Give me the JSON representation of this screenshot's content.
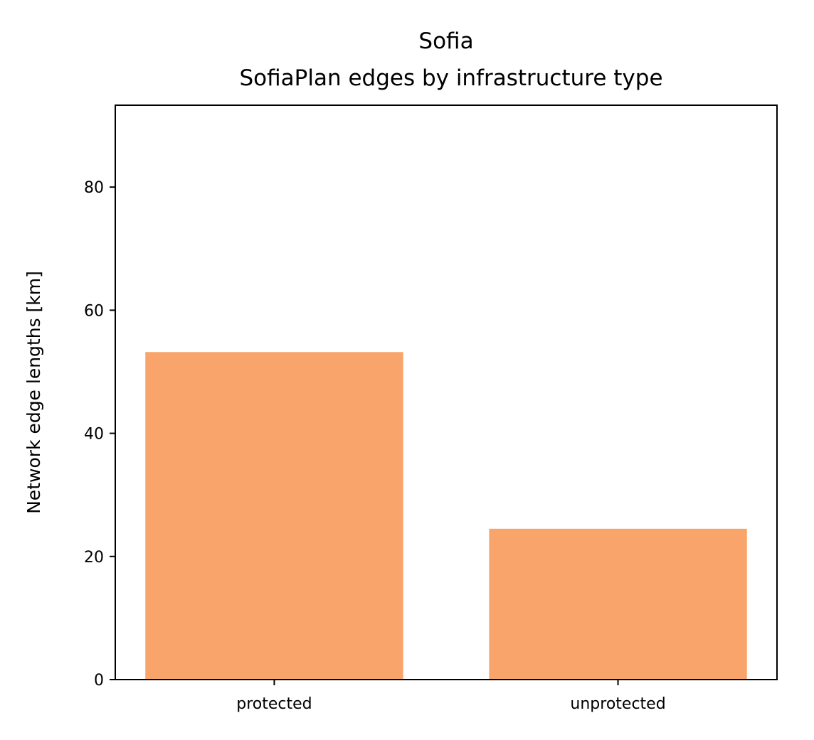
{
  "chart_data": {
    "type": "bar",
    "title": "Sofia",
    "subtitle": "SofiaPlan edges by infrastructure type",
    "xlabel": "",
    "ylabel": "Network edge lengths [km]",
    "categories": [
      "protected",
      "unprotected"
    ],
    "values": [
      53.2,
      24.5
    ],
    "ylim": [
      0,
      93.3
    ],
    "yticks": [
      0,
      20,
      40,
      60,
      80
    ],
    "grid": false,
    "legend": "none"
  },
  "colors": {
    "bar": "#f8a46a",
    "axes": "#000000",
    "background": "#ffffff"
  }
}
